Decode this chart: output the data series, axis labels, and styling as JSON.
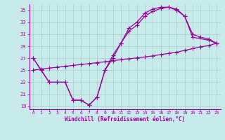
{
  "line1_x": [
    0,
    1,
    2,
    3,
    4,
    5,
    6,
    7,
    8,
    9,
    10,
    11,
    12,
    13,
    14,
    15,
    16,
    17,
    18,
    19,
    20,
    22,
    23
  ],
  "line1_y": [
    27.0,
    25.0,
    23.0,
    23.0,
    23.0,
    20.0,
    20.0,
    19.2,
    20.5,
    25.0,
    27.0,
    29.5,
    32.0,
    33.0,
    34.5,
    35.2,
    35.5,
    35.5,
    35.0,
    34.0,
    30.5,
    30.0,
    29.5
  ],
  "line2_x": [
    0,
    1,
    2,
    3,
    4,
    5,
    6,
    7,
    8,
    9,
    10,
    11,
    12,
    13,
    14,
    15,
    16,
    17,
    18,
    19,
    20,
    21,
    22,
    23
  ],
  "line2_y": [
    25.0,
    25.2,
    25.35,
    25.5,
    25.65,
    25.8,
    25.95,
    26.1,
    26.25,
    26.4,
    26.6,
    26.75,
    26.9,
    27.05,
    27.2,
    27.4,
    27.6,
    27.8,
    28.0,
    28.3,
    28.6,
    28.9,
    29.1,
    29.5
  ],
  "line3_x": [
    0,
    1,
    2,
    3,
    4,
    5,
    6,
    7,
    8,
    9,
    10,
    11,
    12,
    13,
    14,
    15,
    16,
    17,
    18,
    19,
    20,
    21,
    22,
    23
  ],
  "line3_y": [
    27.0,
    25.0,
    23.0,
    23.0,
    23.0,
    20.0,
    20.0,
    19.2,
    20.5,
    25.0,
    27.5,
    29.5,
    31.5,
    32.5,
    34.0,
    34.8,
    35.3,
    35.5,
    35.2,
    34.0,
    31.0,
    30.5,
    30.2,
    29.5
  ],
  "line_color": "#990099",
  "bg_color": "#c8eaea",
  "grid_color": "#a8cccc",
  "xlabel": "Windchill (Refroidissement éolien,°C)",
  "xlim": [
    -0.5,
    23.5
  ],
  "ylim": [
    18.5,
    36
  ],
  "yticks": [
    19,
    21,
    23,
    25,
    27,
    29,
    31,
    33,
    35
  ],
  "xticks": [
    0,
    1,
    2,
    3,
    4,
    5,
    6,
    7,
    8,
    9,
    10,
    11,
    12,
    13,
    14,
    15,
    16,
    17,
    18,
    19,
    20,
    21,
    22,
    23
  ],
  "marker": "+",
  "linewidth": 0.9,
  "markersize": 4
}
